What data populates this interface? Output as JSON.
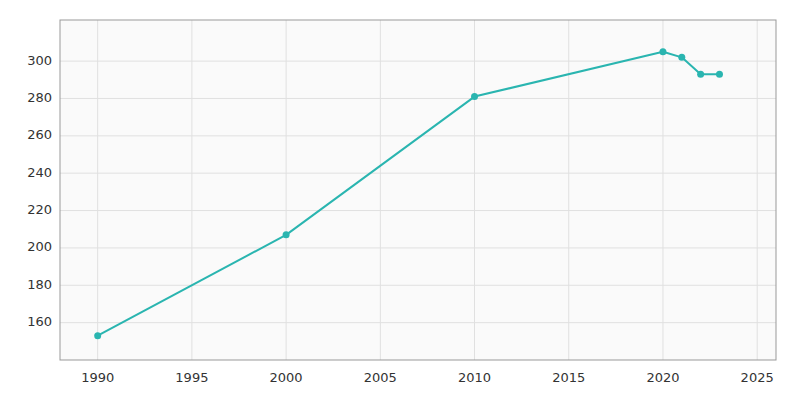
{
  "chart_data": {
    "type": "line",
    "x": [
      1990,
      2000,
      2010,
      2020,
      2021,
      2022,
      2023
    ],
    "values": [
      153,
      207,
      281,
      305,
      302,
      293,
      293
    ],
    "color": "#2ab5b0",
    "marker": "circle",
    "xlim": [
      1988,
      2026
    ],
    "ylim": [
      140,
      322
    ],
    "xticks": [
      1990,
      1995,
      2000,
      2005,
      2010,
      2015,
      2020,
      2025
    ],
    "yticks": [
      160,
      180,
      200,
      220,
      240,
      260,
      280,
      300
    ],
    "grid": true
  }
}
